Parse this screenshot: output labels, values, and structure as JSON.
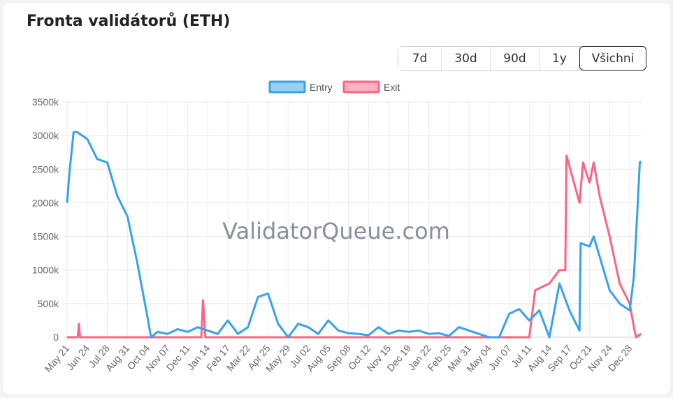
{
  "title": "Fronta validátorů (ETH)",
  "ranges": [
    "7d",
    "30d",
    "90d",
    "1y",
    "Všichni"
  ],
  "active_range": "Všichni",
  "watermark": "ValidatorQueue.com",
  "chart_data": {
    "type": "line",
    "title": "",
    "xlabel": "",
    "ylabel": "",
    "ylim": [
      0,
      3500
    ],
    "yticks": [
      "0",
      "500k",
      "1000k",
      "1500k",
      "2000k",
      "2500k",
      "3000k",
      "3500k"
    ],
    "ytick_values": [
      0,
      500,
      1000,
      1500,
      2000,
      2500,
      3000,
      3500
    ],
    "xticks": [
      "May 21",
      "Jun 24",
      "Jul 28",
      "Aug 31",
      "Oct 04",
      "Nov 07",
      "Dec 11",
      "Jan 14",
      "Feb 17",
      "Mar 22",
      "Apr 25",
      "May 29",
      "Jul 02",
      "Aug 05",
      "Sep 08",
      "Oct 12",
      "Nov 15",
      "Dec 19",
      "Jan 22",
      "Feb 25",
      "Mar 31",
      "May 04",
      "Jun 07",
      "Jul 11",
      "Aug 14",
      "Sep 17",
      "Oct 21",
      "Nov 24",
      "Dec 28"
    ],
    "xtick_dates": [
      "2023-05-21",
      "2023-06-24",
      "2023-07-28",
      "2023-08-31",
      "2023-10-04",
      "2023-11-07",
      "2023-12-11",
      "2024-01-14",
      "2024-02-17",
      "2024-03-22",
      "2024-04-25",
      "2024-05-29",
      "2024-07-02",
      "2024-08-05",
      "2024-09-08",
      "2024-10-12",
      "2024-11-15",
      "2024-12-19",
      "2025-01-22",
      "2025-02-25",
      "2025-03-31",
      "2025-05-04",
      "2025-06-07",
      "2025-07-11",
      "2025-08-14",
      "2025-09-17",
      "2025-10-21",
      "2025-11-24",
      "2025-12-28"
    ],
    "xlim": [
      "2023-05-21",
      "2026-01-17"
    ],
    "grid": true,
    "legend": "top",
    "series": [
      {
        "name": "Entry",
        "color": "#36a2eb",
        "fill": "#9ad0f5",
        "points": [
          [
            "2023-05-21",
            2000
          ],
          [
            "2023-05-25",
            2450
          ],
          [
            "2023-06-01",
            3050
          ],
          [
            "2023-06-07",
            3050
          ],
          [
            "2023-06-24",
            2950
          ],
          [
            "2023-07-11",
            2650
          ],
          [
            "2023-07-28",
            2600
          ],
          [
            "2023-08-14",
            2100
          ],
          [
            "2023-08-31",
            1800
          ],
          [
            "2023-09-17",
            1100
          ],
          [
            "2023-10-04",
            300
          ],
          [
            "2023-10-10",
            0
          ],
          [
            "2023-10-21",
            80
          ],
          [
            "2023-11-07",
            50
          ],
          [
            "2023-11-24",
            120
          ],
          [
            "2023-12-11",
            80
          ],
          [
            "2023-12-28",
            150
          ],
          [
            "2024-01-14",
            100
          ],
          [
            "2024-01-31",
            50
          ],
          [
            "2024-02-17",
            250
          ],
          [
            "2024-03-05",
            50
          ],
          [
            "2024-03-22",
            150
          ],
          [
            "2024-04-08",
            600
          ],
          [
            "2024-04-25",
            650
          ],
          [
            "2024-05-12",
            200
          ],
          [
            "2024-05-29",
            0
          ],
          [
            "2024-06-15",
            200
          ],
          [
            "2024-07-02",
            150
          ],
          [
            "2024-07-19",
            50
          ],
          [
            "2024-08-05",
            250
          ],
          [
            "2024-08-22",
            100
          ],
          [
            "2024-09-08",
            60
          ],
          [
            "2024-09-25",
            50
          ],
          [
            "2024-10-12",
            30
          ],
          [
            "2024-10-29",
            150
          ],
          [
            "2024-11-15",
            50
          ],
          [
            "2024-12-02",
            100
          ],
          [
            "2024-12-19",
            80
          ],
          [
            "2025-01-05",
            100
          ],
          [
            "2025-01-22",
            50
          ],
          [
            "2025-02-08",
            60
          ],
          [
            "2025-02-25",
            20
          ],
          [
            "2025-03-14",
            150
          ],
          [
            "2025-03-31",
            100
          ],
          [
            "2025-04-17",
            50
          ],
          [
            "2025-05-04",
            0
          ],
          [
            "2025-05-21",
            0
          ],
          [
            "2025-06-07",
            350
          ],
          [
            "2025-06-24",
            420
          ],
          [
            "2025-07-11",
            250
          ],
          [
            "2025-07-28",
            400
          ],
          [
            "2025-08-14",
            0
          ],
          [
            "2025-08-31",
            800
          ],
          [
            "2025-09-17",
            400
          ],
          [
            "2025-10-04",
            100
          ],
          [
            "2025-10-06",
            1400
          ],
          [
            "2025-10-21",
            1350
          ],
          [
            "2025-10-28",
            1500
          ],
          [
            "2025-11-07",
            1200
          ],
          [
            "2025-11-24",
            700
          ],
          [
            "2025-12-11",
            500
          ],
          [
            "2025-12-28",
            400
          ],
          [
            "2026-01-04",
            900
          ],
          [
            "2026-01-10",
            1900
          ],
          [
            "2026-01-14",
            2600
          ],
          [
            "2026-01-16",
            2620
          ]
        ]
      },
      {
        "name": "Exit",
        "color": "#ff6384",
        "fill": "#ffb1c1",
        "points": [
          [
            "2023-05-21",
            0
          ],
          [
            "2023-06-08",
            0
          ],
          [
            "2023-06-10",
            200
          ],
          [
            "2023-06-12",
            0
          ],
          [
            "2024-01-03",
            0
          ],
          [
            "2024-01-06",
            550
          ],
          [
            "2024-01-10",
            0
          ],
          [
            "2025-07-11",
            0
          ],
          [
            "2025-07-21",
            700
          ],
          [
            "2025-08-14",
            800
          ],
          [
            "2025-08-31",
            1000
          ],
          [
            "2025-09-10",
            1000
          ],
          [
            "2025-09-12",
            2700
          ],
          [
            "2025-10-04",
            2000
          ],
          [
            "2025-10-10",
            2600
          ],
          [
            "2025-10-21",
            2300
          ],
          [
            "2025-10-28",
            2600
          ],
          [
            "2025-11-07",
            2100
          ],
          [
            "2025-11-24",
            1500
          ],
          [
            "2025-12-11",
            800
          ],
          [
            "2025-12-28",
            500
          ],
          [
            "2026-01-05",
            100
          ],
          [
            "2026-01-08",
            0
          ],
          [
            "2026-01-16",
            50
          ]
        ]
      }
    ]
  }
}
